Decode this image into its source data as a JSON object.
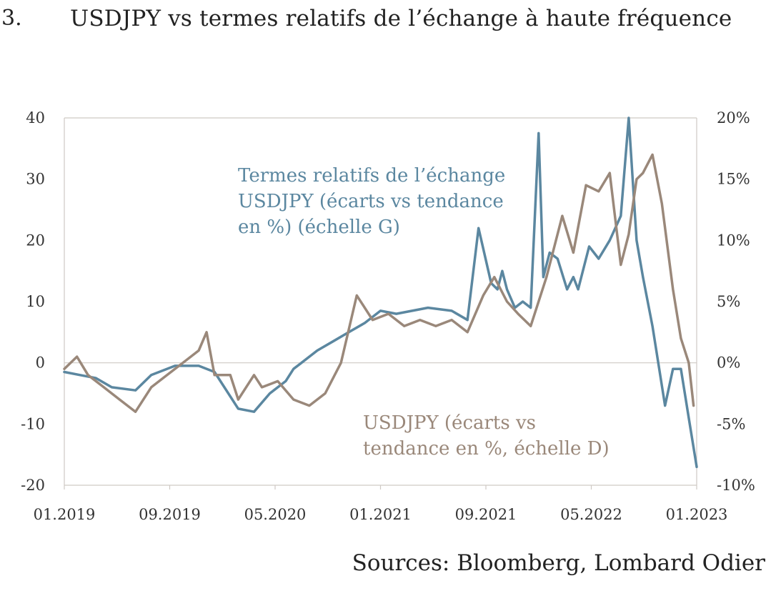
{
  "header": {
    "figure_number": "3.",
    "title": "USDJPY vs termes relatifs de l’échange à haute fréquence"
  },
  "source": "Sources: Bloomberg, Lombard Odier",
  "colors": {
    "tot": "#5b87a0",
    "usdjpy": "#9a887a",
    "axis": "#cfc9c4",
    "text": "#333333"
  },
  "chart_data": {
    "type": "line",
    "title": "USDJPY vs termes relatifs de l’échange à haute fréquence",
    "x_range": [
      "2019-01",
      "2023-01"
    ],
    "x_ticks": [
      "01.2019",
      "09.2019",
      "05.2020",
      "01.2021",
      "09.2021",
      "05.2022",
      "01.2023"
    ],
    "left_axis": {
      "range": [
        -20,
        40
      ],
      "ticks": [
        "-20",
        "-10",
        "0",
        "10",
        "20",
        "30",
        "40"
      ]
    },
    "right_axis": {
      "range": [
        -10,
        20
      ],
      "ticks": [
        "-10%",
        "-5%",
        "0%",
        "5%",
        "10%",
        "15%",
        "20%"
      ]
    },
    "grid": false,
    "annotations": {
      "tot": [
        "Termes relatifs de l’échange",
        "USDJPY (écarts vs tendance",
        "en %) (échelle G)"
      ],
      "usdjpy": [
        "USDJPY (écarts vs",
        "tendance en %, échelle D)"
      ]
    },
    "series": [
      {
        "key": "tot",
        "axis": "left",
        "x": [
          2019.0,
          2019.1,
          2019.2,
          2019.3,
          2019.45,
          2019.55,
          2019.7,
          2019.85,
          2019.95,
          2020.1,
          2020.2,
          2020.3,
          2020.4,
          2020.45,
          2020.5,
          2020.6,
          2020.7,
          2020.8,
          2020.9,
          2021.0,
          2021.1,
          2021.2,
          2021.3,
          2021.45,
          2021.55,
          2021.62,
          2021.7,
          2021.74,
          2021.77,
          2021.8,
          2021.85,
          2021.9,
          2021.95,
          2022.0,
          2022.03,
          2022.07,
          2022.12,
          2022.18,
          2022.22,
          2022.25,
          2022.32,
          2022.38,
          2022.45,
          2022.52,
          2022.57,
          2022.62,
          2022.66,
          2022.72,
          2022.8,
          2022.85,
          2022.9,
          2022.95,
          2023.0
        ],
        "values": [
          -1.5,
          -2,
          -2.5,
          -4,
          -4.5,
          -2,
          -0.5,
          -0.5,
          -1.5,
          -7.5,
          -8,
          -5,
          -3,
          -1,
          0,
          2,
          3.5,
          5,
          6.5,
          8.5,
          8,
          8.5,
          9,
          8.5,
          7,
          22,
          13,
          12,
          15,
          12,
          9,
          10,
          9,
          37.5,
          14,
          18,
          17,
          12,
          14,
          12,
          19,
          17,
          20,
          24,
          40,
          20,
          14,
          6,
          -7,
          -1,
          -1,
          -9,
          -17
        ]
      },
      {
        "key": "usdjpy",
        "axis": "right",
        "x": [
          2019.0,
          2019.08,
          2019.15,
          2019.25,
          2019.35,
          2019.45,
          2019.55,
          2019.65,
          2019.75,
          2019.85,
          2019.9,
          2019.95,
          2020.05,
          2020.1,
          2020.2,
          2020.25,
          2020.35,
          2020.45,
          2020.55,
          2020.65,
          2020.75,
          2020.85,
          2020.95,
          2021.05,
          2021.15,
          2021.25,
          2021.35,
          2021.45,
          2021.55,
          2021.65,
          2021.72,
          2021.8,
          2021.87,
          2021.95,
          2022.05,
          2022.15,
          2022.22,
          2022.3,
          2022.38,
          2022.45,
          2022.52,
          2022.57,
          2022.62,
          2022.66,
          2022.72,
          2022.78,
          2022.85,
          2022.9,
          2022.95,
          2022.98
        ],
        "values": [
          -0.5,
          0.5,
          -1,
          -2,
          -3,
          -4,
          -2,
          -1,
          0,
          1,
          2.5,
          -1,
          -1,
          -3,
          -1,
          -2,
          -1.5,
          -3,
          -3.5,
          -2.5,
          0,
          5.5,
          3.5,
          4,
          3,
          3.5,
          3,
          3.5,
          2.5,
          5.5,
          7,
          5,
          4,
          3,
          7,
          12,
          9,
          14.5,
          14,
          15.5,
          8,
          10.5,
          15,
          15.5,
          17,
          13,
          6,
          2,
          0,
          -3.5
        ]
      }
    ]
  }
}
